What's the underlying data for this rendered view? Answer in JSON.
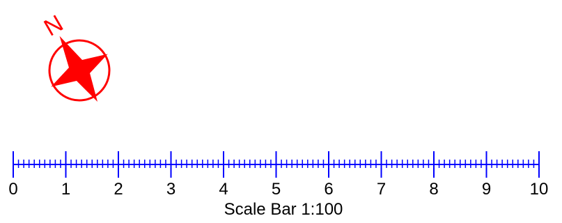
{
  "colors": {
    "north_arrow": "#ff0000",
    "scale_bar": "#0000ff",
    "text": "#000000",
    "background": "#ffffff"
  },
  "north_arrow": {
    "icon": "compass-rose-icon",
    "letter": "N",
    "rotation_deg": -30
  },
  "scale_bar": {
    "title": "Scale Bar 1:100",
    "min": 0,
    "max": 10,
    "major_step": 1,
    "minor_divisions_per_major": 10,
    "labels": [
      "0",
      "1",
      "2",
      "3",
      "4",
      "5",
      "6",
      "7",
      "8",
      "9",
      "10"
    ]
  }
}
